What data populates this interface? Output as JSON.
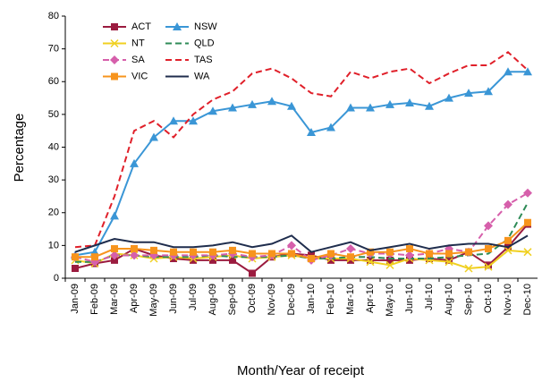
{
  "chart_data": {
    "type": "line",
    "y_label": "Percentage",
    "x_label": "Month/Year of receipt",
    "categories": [
      "Jan-09",
      "Feb-09",
      "Mar-09",
      "Apr-09",
      "May-09",
      "Jun-09",
      "Jul-09",
      "Aug-09",
      "Sep-09",
      "Oct-09",
      "Nov-09",
      "Dec-09",
      "Jan-10",
      "Feb-10",
      "Mar-10",
      "Apr-10",
      "May-10",
      "Jun-10",
      "Jul-10",
      "Aug-10",
      "Sep-10",
      "Oct-10",
      "Nov-10",
      "Dec-10"
    ],
    "ylim": [
      0,
      80
    ],
    "yticks": [
      0,
      10,
      20,
      30,
      40,
      50,
      60,
      70,
      80
    ],
    "legend": "top-left",
    "series": [
      {
        "name": "ACT",
        "color": "#9b1b3f",
        "marker": "square",
        "dashed": false,
        "values": [
          3,
          4.5,
          5.5,
          9,
          7,
          6,
          5.5,
          5.5,
          5.5,
          1.5,
          6.5,
          7.5,
          7,
          5.5,
          5.5,
          5.5,
          5.5,
          5.5,
          6,
          5.5,
          8,
          4,
          9.5,
          16.5
        ]
      },
      {
        "name": "NSW",
        "color": "#3a96d6",
        "marker": "triangle",
        "dashed": false,
        "values": [
          7,
          8,
          19,
          35,
          43,
          48,
          48,
          51,
          52,
          53,
          54,
          52.5,
          44.5,
          46,
          52,
          52,
          53,
          53.5,
          52.5,
          55,
          56.5,
          57,
          63,
          63
        ]
      },
      {
        "name": "NT",
        "color": "#f0d020",
        "marker": "x",
        "dashed": false,
        "values": [
          5.5,
          4.5,
          7.5,
          7,
          6,
          6.5,
          6,
          6.5,
          7,
          6,
          6.5,
          7,
          6,
          6,
          6,
          5,
          4,
          6,
          5.5,
          5,
          3,
          3.5,
          8.5,
          8
        ]
      },
      {
        "name": "QLD",
        "color": "#2e8b57",
        "marker": "none",
        "dashed": true,
        "values": [
          5,
          5,
          7,
          7,
          6.5,
          6.5,
          6.5,
          7,
          6.5,
          6.5,
          6.5,
          7,
          6,
          6,
          6.5,
          6.5,
          6,
          6,
          6,
          6.5,
          7,
          7.5,
          12,
          23
        ]
      },
      {
        "name": "SA",
        "color": "#d65fab",
        "marker": "diamond",
        "dashed": true,
        "values": [
          6.5,
          5,
          7,
          7,
          7,
          7,
          7,
          7,
          7.5,
          6.5,
          7,
          10,
          5.5,
          7,
          9,
          7.5,
          7.5,
          7,
          7.5,
          9,
          8,
          16,
          22.5,
          26
        ]
      },
      {
        "name": "TAS",
        "color": "#e0202a",
        "marker": "none",
        "dashed": true,
        "values": [
          9.5,
          10,
          25,
          45,
          48,
          43,
          50,
          54.5,
          57,
          62.5,
          64,
          61,
          56.5,
          55.5,
          63,
          61,
          63,
          64,
          59.5,
          62.5,
          65,
          65,
          69,
          63.5
        ]
      },
      {
        "name": "VIC",
        "color": "#f7941d",
        "marker": "square",
        "dashed": false,
        "values": [
          6.5,
          6.5,
          9,
          9,
          8.5,
          8,
          8,
          8,
          8.5,
          7.5,
          7.5,
          7.5,
          6,
          7.5,
          6.5,
          8,
          8,
          9,
          7.5,
          7.5,
          8,
          9,
          11.5,
          17
        ]
      },
      {
        "name": "WA",
        "color": "#1f2d4d",
        "marker": "none",
        "dashed": false,
        "values": [
          8,
          10,
          12,
          11,
          11,
          9.5,
          9.5,
          10,
          11,
          9.5,
          10.5,
          13,
          8,
          9.5,
          11,
          8.5,
          9.5,
          10.5,
          9,
          10,
          10.5,
          10.5,
          9.5,
          13
        ]
      }
    ]
  }
}
